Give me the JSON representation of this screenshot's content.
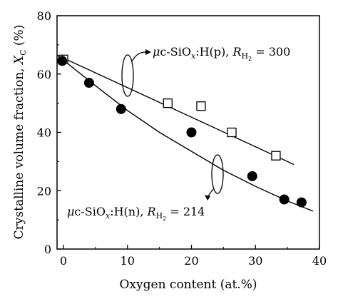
{
  "chart_data": {
    "type": "scatter",
    "xlabel": "Oxygen content (at.%)",
    "ylabel": "Crystalline volume fraction, X_C (%)",
    "xlim": [
      -1,
      40
    ],
    "ylim": [
      0,
      80
    ],
    "xticks": [
      "0",
      "10",
      "20",
      "30",
      "40"
    ],
    "yticks": [
      "0",
      "20",
      "40",
      "60",
      "80"
    ],
    "grid": false,
    "series": [
      {
        "name": "μc-SiOx:H(p), RH2 = 300",
        "marker": "open-square",
        "points": [
          [
            0,
            65
          ],
          [
            16.3,
            50
          ],
          [
            21.5,
            49
          ],
          [
            26.3,
            40
          ],
          [
            33.2,
            32
          ]
        ],
        "fit": [
          [
            -1,
            66.5
          ],
          [
            36,
            29
          ]
        ]
      },
      {
        "name": "μc-SiOx:H(n), RH2 = 214",
        "marker": "filled-circle",
        "points": [
          [
            -0.2,
            64.5
          ],
          [
            4,
            57
          ],
          [
            9,
            48
          ],
          [
            20,
            40
          ],
          [
            29.5,
            25
          ],
          [
            34.5,
            17
          ],
          [
            37.2,
            16
          ]
        ],
        "fit": [
          [
            -1,
            66.5
          ],
          [
            5,
            56
          ],
          [
            10,
            47.5
          ],
          [
            15,
            40
          ],
          [
            20,
            33.5
          ],
          [
            25,
            27
          ],
          [
            30,
            21.5
          ],
          [
            35,
            16.5
          ],
          [
            39,
            13
          ]
        ]
      }
    ],
    "annotations": [
      {
        "prefix": "μc-SiO",
        "sub": "x",
        "mid": ":H(p), ",
        "r": "R",
        "rsub": "H",
        "rsub2": "2",
        "tail": " = 300"
      },
      {
        "prefix": "μc-SiO",
        "sub": "x",
        "mid": ":H(n), ",
        "r": "R",
        "rsub": "H",
        "rsub2": "2",
        "tail": " = 214"
      }
    ]
  }
}
